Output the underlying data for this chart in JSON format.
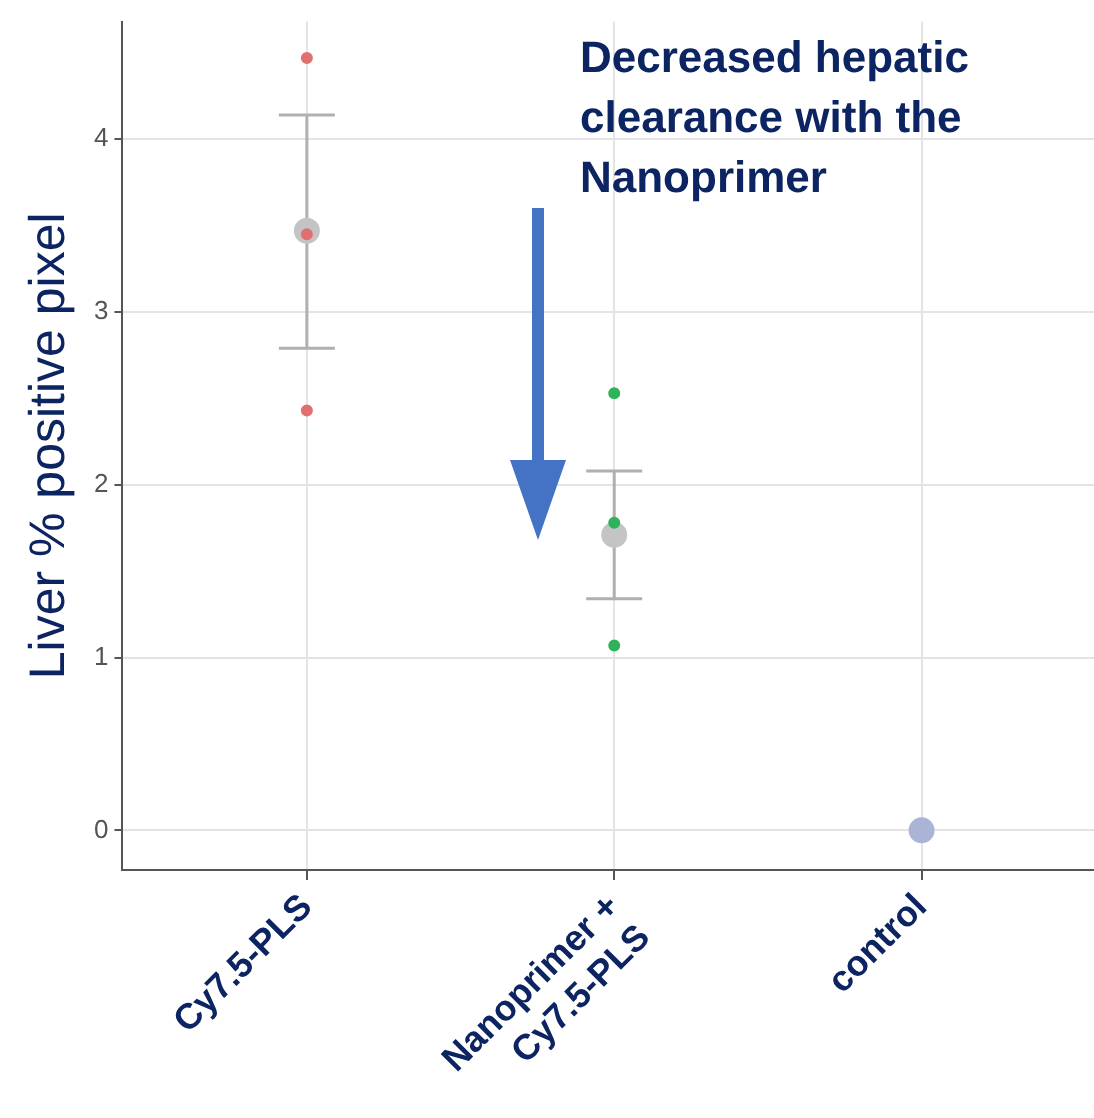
{
  "chart_data": {
    "type": "scatter",
    "ylabel": "Liver % positive pixel",
    "categories": [
      "Cy7.5-PLS",
      "Nanoprimer +\nCy7.5-PLS",
      "control"
    ],
    "series": [
      {
        "x": [
          "Cy7.5-PLS",
          "Cy7.5-PLS",
          "Cy7.5-PLS"
        ],
        "values": [
          4.47,
          3.45,
          2.43
        ],
        "color": "#e07070"
      },
      {
        "x": [
          "Nanoprimer +\nCy7.5-PLS",
          "Nanoprimer +\nCy7.5-PLS",
          "Nanoprimer +\nCy7.5-PLS"
        ],
        "values": [
          2.53,
          1.78,
          1.07
        ],
        "color": "#2fb35a"
      },
      {
        "values": [
          3.47,
          1.71,
          0
        ],
        "errors": [
          [
            2.79,
            4.14
          ],
          [
            1.34,
            2.08
          ],
          null
        ],
        "colors": [
          "#c4c4c4",
          "#c4c4c4",
          "#aab4d6"
        ]
      }
    ],
    "ylim": [
      -0.23,
      4.68
    ],
    "yticks": [
      0,
      1,
      2,
      3,
      4
    ],
    "grid": true,
    "marker": "circle",
    "annotations": [
      "Decreased hepatic clearance with the Nanoprimer"
    ]
  }
}
